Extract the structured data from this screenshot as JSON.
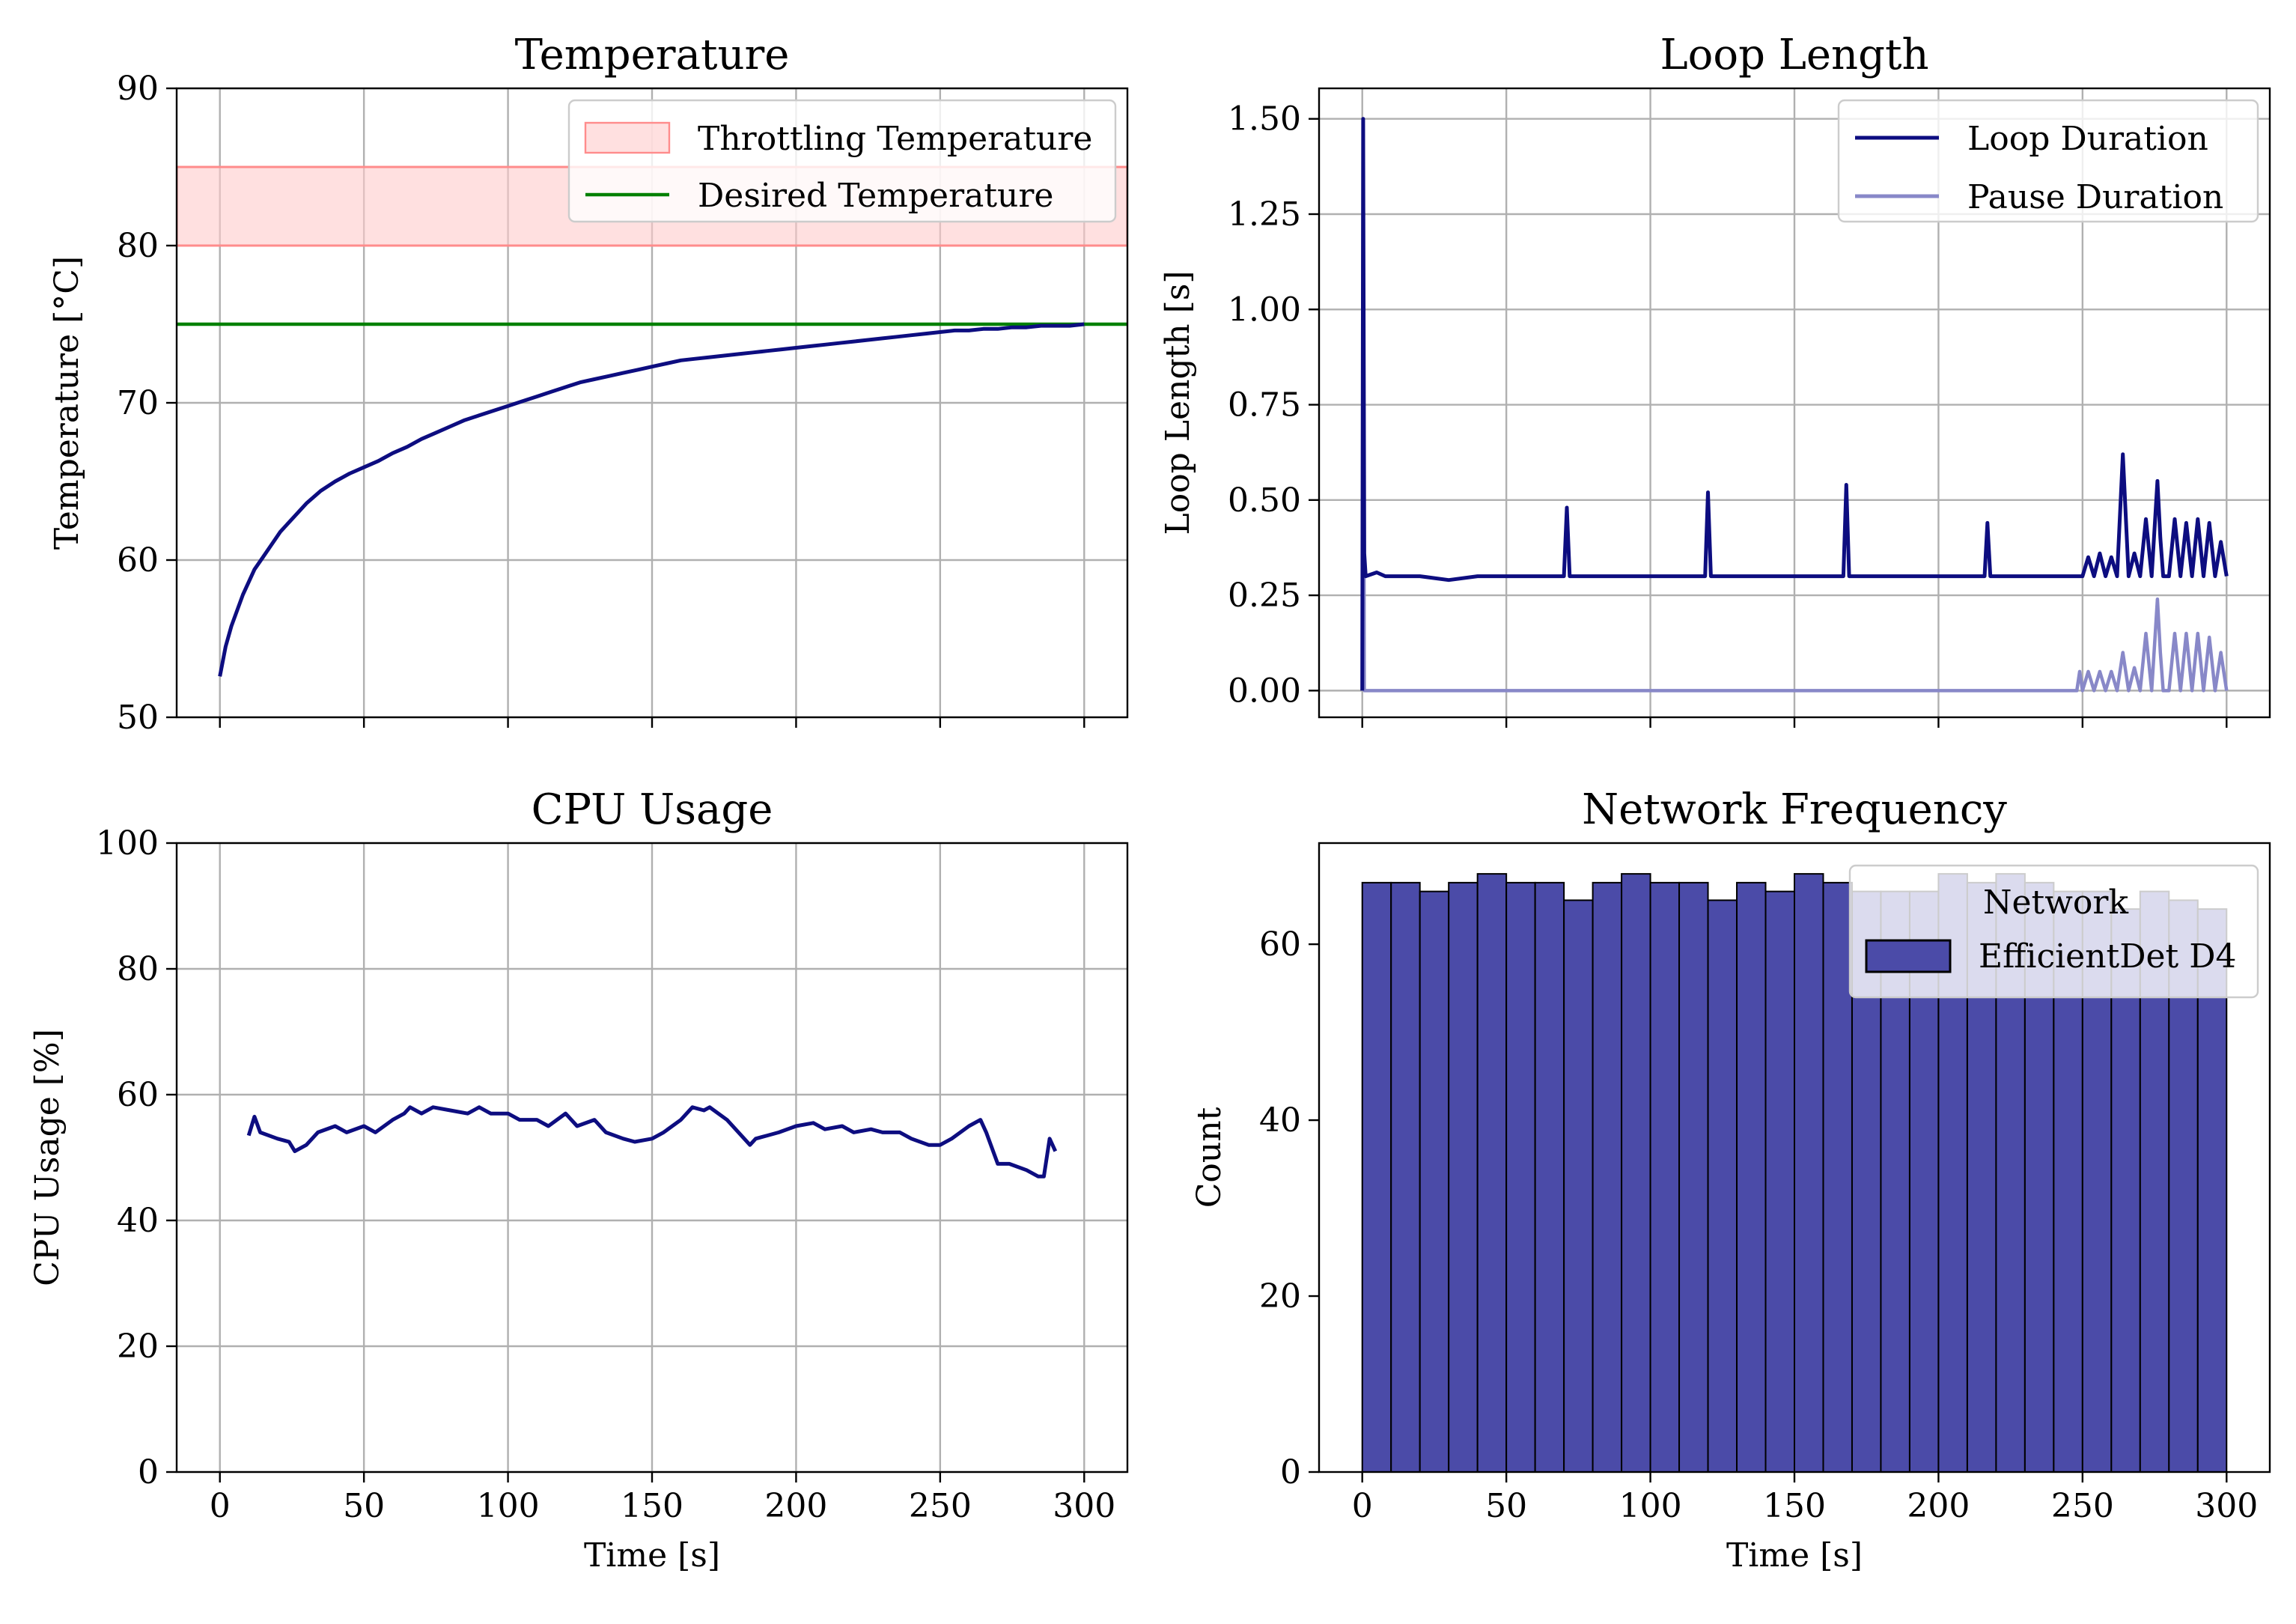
{
  "chart_data": [
    {
      "id": "temperature",
      "type": "line",
      "title": "Temperature",
      "xlabel": "",
      "ylabel": "Temperature [$^{\\circ}$C]",
      "ylabel_text": "Temperature [°C]",
      "xlim": [
        -15,
        315
      ],
      "ylim": [
        50,
        90
      ],
      "xticks": [
        0,
        50,
        100,
        150,
        200,
        250,
        300
      ],
      "yticks": [
        50,
        60,
        70,
        80,
        90
      ],
      "grid": true,
      "legend": {
        "placement": "upper-right"
      },
      "bands": [
        {
          "name": "Throttling Temperature",
          "y0": 80,
          "y1": 85,
          "fill": "#ffcccc",
          "edge": "#ff8c8c"
        }
      ],
      "hlines": [
        {
          "name": "Desired Temperature",
          "y": 75,
          "color": "#008000"
        }
      ],
      "series": [
        {
          "name": "",
          "color": "#0d0d80",
          "x": [
            0,
            2,
            4,
            6,
            8,
            10,
            12,
            15,
            18,
            21,
            25,
            30,
            35,
            40,
            45,
            50,
            55,
            60,
            65,
            70,
            75,
            80,
            85,
            90,
            95,
            100,
            105,
            110,
            115,
            120,
            125,
            130,
            135,
            140,
            145,
            150,
            155,
            160,
            165,
            170,
            175,
            180,
            185,
            190,
            195,
            200,
            205,
            210,
            215,
            220,
            225,
            230,
            235,
            240,
            245,
            250,
            255,
            260,
            265,
            270,
            275,
            280,
            285,
            290,
            295,
            300
          ],
          "y": [
            52.6,
            54.5,
            55.8,
            56.8,
            57.8,
            58.6,
            59.4,
            60.2,
            61.0,
            61.8,
            62.6,
            63.6,
            64.4,
            65.0,
            65.5,
            65.9,
            66.3,
            66.8,
            67.2,
            67.7,
            68.1,
            68.5,
            68.9,
            69.2,
            69.5,
            69.8,
            70.1,
            70.4,
            70.7,
            71.0,
            71.3,
            71.5,
            71.7,
            71.9,
            72.1,
            72.3,
            72.5,
            72.7,
            72.8,
            72.9,
            73.0,
            73.1,
            73.2,
            73.3,
            73.4,
            73.5,
            73.6,
            73.7,
            73.8,
            73.9,
            74.0,
            74.1,
            74.2,
            74.3,
            74.4,
            74.5,
            74.6,
            74.6,
            74.7,
            74.7,
            74.8,
            74.8,
            74.9,
            74.9,
            74.9,
            75.0
          ]
        }
      ]
    },
    {
      "id": "loop-length",
      "type": "line",
      "title": "Loop Length",
      "xlabel": "",
      "ylabel": "Loop Length [s]",
      "xlim": [
        -15,
        315
      ],
      "ylim": [
        -0.07,
        1.58
      ],
      "xticks": [
        0,
        50,
        100,
        150,
        200,
        250,
        300
      ],
      "yticks": [
        0.0,
        0.25,
        0.5,
        0.75,
        1.0,
        1.25,
        1.5
      ],
      "yticklabels": [
        "0.00",
        "0.25",
        "0.50",
        "0.75",
        "1.00",
        "1.25",
        "1.50"
      ],
      "grid": true,
      "legend": {
        "placement": "upper-right"
      },
      "series": [
        {
          "name": "Loop Duration",
          "color": "#0d0d80",
          "baseline": 0.3,
          "x": [
            0,
            0.3,
            0.7,
            1.2,
            5,
            8,
            10,
            20,
            30,
            40,
            50,
            60,
            70,
            71,
            72,
            80,
            90,
            100,
            110,
            119,
            120,
            121,
            130,
            140,
            150,
            160,
            167,
            168,
            169,
            180,
            190,
            200,
            210,
            216,
            217,
            218,
            230,
            240,
            250,
            252,
            254,
            256,
            258,
            260,
            262,
            264,
            266,
            268,
            270,
            272,
            274,
            276,
            277,
            278,
            280,
            282,
            284,
            286,
            288,
            290,
            292,
            294,
            296,
            298,
            300
          ],
          "y": [
            0.0,
            1.5,
            0.36,
            0.3,
            0.31,
            0.3,
            0.3,
            0.3,
            0.29,
            0.3,
            0.3,
            0.3,
            0.3,
            0.48,
            0.3,
            0.3,
            0.3,
            0.3,
            0.3,
            0.3,
            0.52,
            0.3,
            0.3,
            0.3,
            0.3,
            0.3,
            0.3,
            0.54,
            0.3,
            0.3,
            0.3,
            0.3,
            0.3,
            0.3,
            0.44,
            0.3,
            0.3,
            0.3,
            0.3,
            0.35,
            0.3,
            0.36,
            0.3,
            0.35,
            0.3,
            0.62,
            0.3,
            0.36,
            0.3,
            0.45,
            0.3,
            0.55,
            0.4,
            0.3,
            0.3,
            0.45,
            0.3,
            0.44,
            0.3,
            0.45,
            0.3,
            0.44,
            0.3,
            0.39,
            0.3
          ]
        },
        {
          "name": "Pause Duration",
          "color": "#8888c8",
          "x": [
            0,
            0.3,
            0.7,
            1.2,
            100,
            200,
            248,
            249,
            250,
            252,
            254,
            256,
            258,
            260,
            262,
            264,
            266,
            268,
            270,
            272,
            274,
            276,
            277,
            278,
            280,
            282,
            284,
            286,
            288,
            290,
            292,
            294,
            296,
            298,
            300
          ],
          "y": [
            0.0,
            1.5,
            0.0,
            0.0,
            0.0,
            0.0,
            0.0,
            0.05,
            0.0,
            0.05,
            0.0,
            0.05,
            0.0,
            0.05,
            0.0,
            0.1,
            0.0,
            0.06,
            0.0,
            0.15,
            0.0,
            0.24,
            0.1,
            0.0,
            0.0,
            0.15,
            0.0,
            0.15,
            0.0,
            0.15,
            0.0,
            0.14,
            0.0,
            0.1,
            0.0
          ]
        }
      ]
    },
    {
      "id": "cpu-usage",
      "type": "line",
      "title": "CPU Usage",
      "xlabel": "Time [s]",
      "ylabel": "CPU Usage [%]",
      "xlim": [
        -15,
        315
      ],
      "ylim": [
        0,
        100
      ],
      "xticks": [
        0,
        50,
        100,
        150,
        200,
        250,
        300
      ],
      "yticks": [
        0,
        20,
        40,
        60,
        80,
        100
      ],
      "grid": true,
      "series": [
        {
          "name": "",
          "color": "#0d0d80",
          "x": [
            10,
            12,
            14,
            20,
            24,
            26,
            30,
            34,
            40,
            44,
            50,
            54,
            60,
            64,
            66,
            70,
            74,
            80,
            86,
            90,
            94,
            100,
            104,
            110,
            114,
            120,
            124,
            130,
            134,
            140,
            144,
            150,
            154,
            160,
            164,
            168,
            170,
            176,
            180,
            184,
            186,
            190,
            194,
            200,
            206,
            210,
            216,
            220,
            226,
            230,
            236,
            240,
            246,
            250,
            254,
            260,
            264,
            266,
            270,
            274,
            280,
            284,
            286,
            288,
            290
          ],
          "y": [
            53.5,
            56.5,
            54,
            53,
            52.5,
            51,
            52,
            54,
            55,
            54,
            55,
            54,
            56,
            57,
            58,
            57,
            58,
            57.5,
            57,
            58,
            57,
            57,
            56,
            56,
            55,
            57,
            55,
            56,
            54,
            53,
            52.5,
            53,
            54,
            56,
            58,
            57.5,
            58,
            56,
            54,
            52,
            53,
            53.5,
            54,
            55,
            55.5,
            54.5,
            55,
            54,
            54.5,
            54,
            54,
            53,
            52,
            52,
            53,
            55,
            56,
            54,
            49,
            49,
            48,
            47,
            47,
            53,
            51
          ]
        }
      ]
    },
    {
      "id": "network-frequency",
      "type": "bar",
      "title": "Network Frequency",
      "xlabel": "Time [s]",
      "ylabel": "Count",
      "xlim": [
        -15,
        315
      ],
      "ylim": [
        0,
        71.5
      ],
      "xticks": [
        0,
        50,
        100,
        150,
        200,
        250,
        300
      ],
      "yticks": [
        0,
        20,
        40,
        60
      ],
      "grid": false,
      "legend": {
        "placement": "upper-right",
        "title": "Network"
      },
      "bin_width": 10,
      "bin_start": 0,
      "series": [
        {
          "name": "EfficientDet D4",
          "color": "#4b4ba8",
          "values": [
            67,
            67,
            66,
            67,
            68,
            67,
            67,
            65,
            67,
            68,
            67,
            67,
            65,
            67,
            66,
            68,
            67,
            66,
            66,
            66,
            68,
            67,
            68,
            67,
            66,
            66,
            64,
            66,
            65,
            64
          ]
        }
      ]
    }
  ]
}
